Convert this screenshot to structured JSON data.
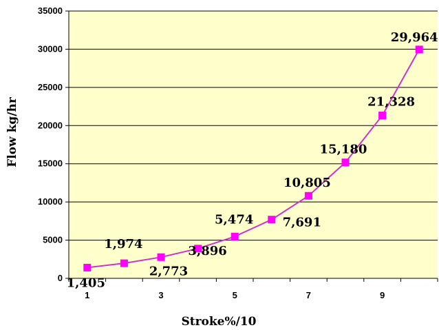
{
  "chart_data": {
    "type": "line",
    "title": "",
    "xlabel": "Stroke%/10",
    "ylabel": "Flow kg/hr",
    "x": [
      1,
      2,
      3,
      4,
      5,
      6,
      7,
      8,
      9,
      10
    ],
    "x_tick_labels": [
      "1",
      "3",
      "5",
      "7",
      "9"
    ],
    "x_tick_values": [
      1,
      3,
      5,
      7,
      9
    ],
    "ylim": [
      0,
      35000
    ],
    "y_ticks": [
      0,
      5000,
      10000,
      15000,
      20000,
      25000,
      30000,
      35000
    ],
    "y_tick_labels": [
      "0",
      "5000",
      "10000",
      "15000",
      "20000",
      "25000",
      "30000",
      "35000"
    ],
    "series": [
      {
        "values": [
          1405,
          1974,
          2773,
          3896,
          5474,
          7691,
          10805,
          15180,
          21328,
          29964
        ],
        "data_labels": [
          "1,405",
          "1,974",
          "2,773",
          "3,896",
          "5,474",
          "7,691",
          "10,805",
          "15,180",
          "21,328",
          "29,964"
        ]
      }
    ],
    "grid": true,
    "colors": {
      "plot_background": "#FFFFCC",
      "series_line": "#CC33CC",
      "marker": "#FF00FF",
      "gridline": "#000000"
    }
  }
}
